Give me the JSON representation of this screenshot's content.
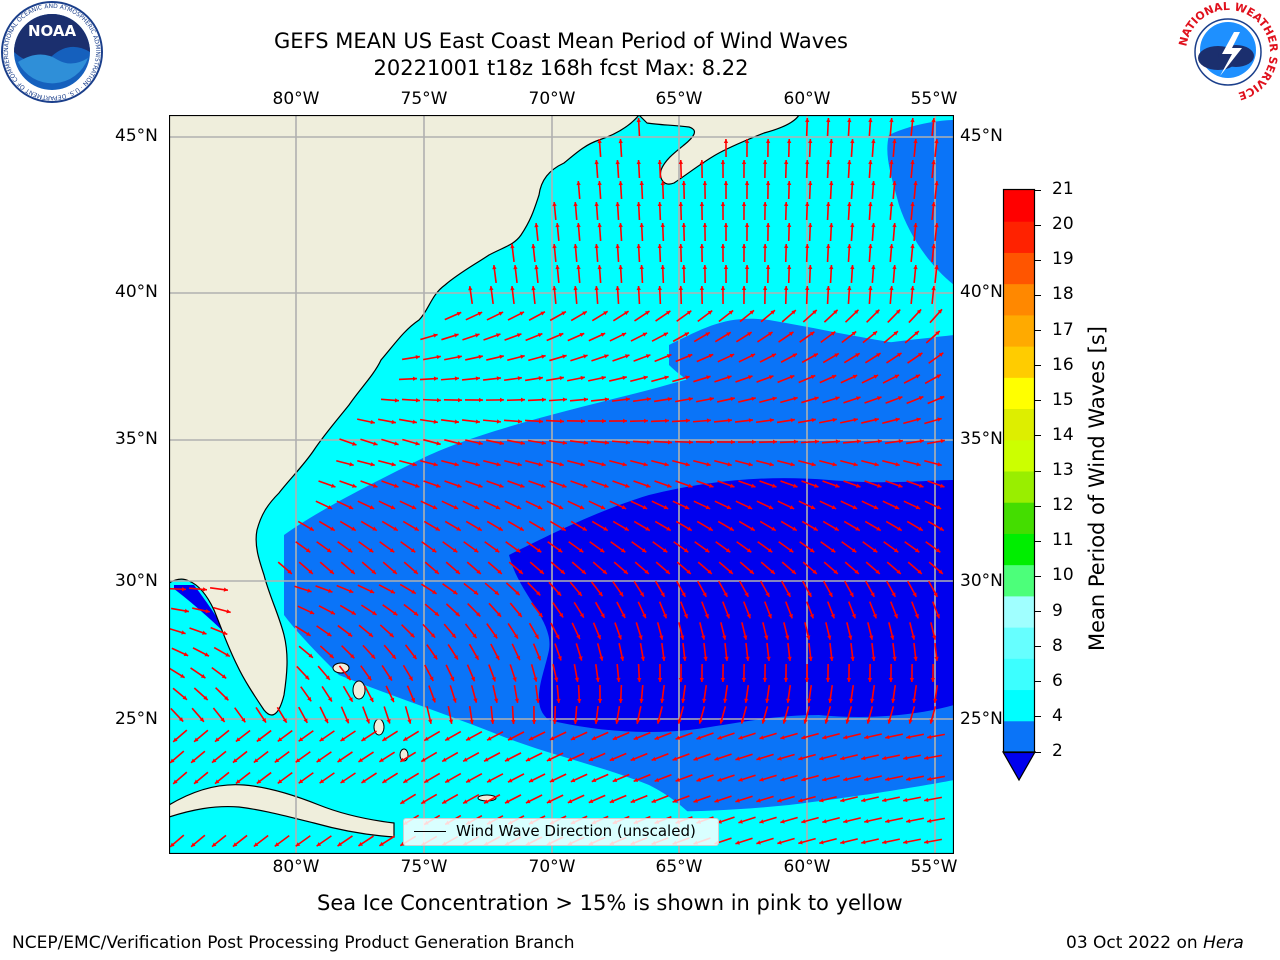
{
  "header": {
    "title_line1": "GEFS MEAN US East Coast Mean Period of Wind Waves",
    "title_line2": "20221001 t18z 168h fcst   Max: 8.22"
  },
  "logos": {
    "left": "NOAA",
    "left_ring": "NATIONAL OCEANIC AND ATMOSPHERIC ADMINISTRATION · U.S. DEPARTMENT OF COMMERCE",
    "right_ring": "NATIONAL WEATHER SERVICE"
  },
  "map": {
    "lon_labels": [
      "80°W",
      "75°W",
      "70°W",
      "65°W",
      "60°W",
      "55°W"
    ],
    "lat_labels": [
      "45°N",
      "40°N",
      "35°N",
      "30°N",
      "25°N"
    ],
    "legend_text": "Wind Wave Direction (unscaled)",
    "colors": {
      "land": "#efeedc",
      "dark_blue": "#0000ee",
      "mid_blue": "#0a74f8",
      "cyan": "#00ffff",
      "arrow": "#ff0000",
      "grid": "#b0b0b0"
    }
  },
  "colorbar": {
    "label": "Mean Period of Wind Waves [s]",
    "ticks": [
      "2",
      "4",
      "6",
      "8",
      "9",
      "10",
      "11",
      "12",
      "13",
      "14",
      "15",
      "16",
      "17",
      "18",
      "19",
      "20",
      "21"
    ],
    "colors": [
      "#0a74f8",
      "#00ffff",
      "#3cffff",
      "#66ffff",
      "#a0ffff",
      "#4cff7a",
      "#00ee00",
      "#44dd00",
      "#99ee00",
      "#ccff00",
      "#ddee00",
      "#ffff00",
      "#ffcc00",
      "#ffaa00",
      "#ff8800",
      "#ff5500",
      "#ff2200",
      "#ff0000"
    ],
    "under_color": "#0000ee"
  },
  "notes": {
    "sea_ice": "Sea Ice Concentration > 15% is shown in pink to yellow",
    "footer_left": "NCEP/EMC/Verification Post Processing Product Generation Branch",
    "footer_date": "03 Oct 2022 on ",
    "footer_machine": "Hera"
  }
}
